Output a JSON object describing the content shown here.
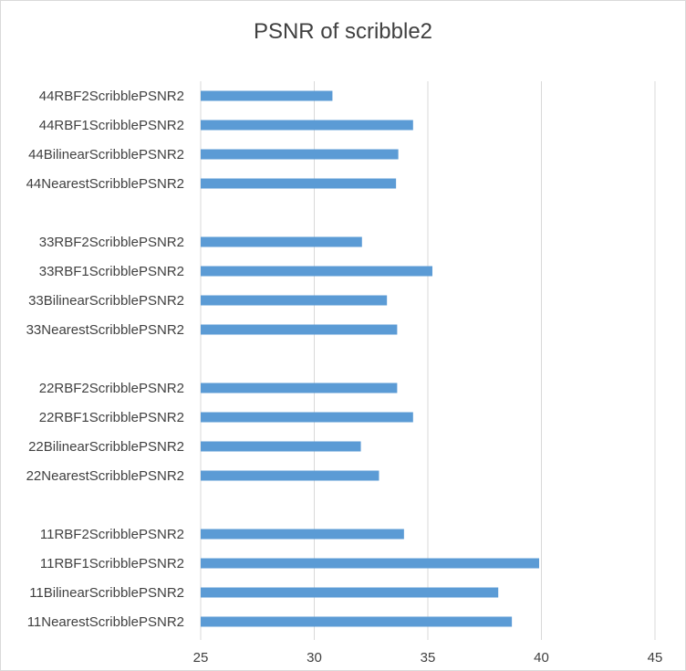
{
  "chart_data": {
    "type": "bar",
    "orientation": "horizontal",
    "title": "PSNR of scribble2",
    "xlabel": "",
    "ylabel": "",
    "xlim": [
      25,
      45
    ],
    "xticks": [
      25,
      30,
      35,
      40,
      45
    ],
    "grid": "vertical",
    "legend": "none",
    "bar_color": "#5b9bd5",
    "grid_color": "#d9d9d9",
    "groups": [
      {
        "items": [
          {
            "label": "44RBF2ScribblePSNR2",
            "value": 30.8
          },
          {
            "label": "44RBF1ScribblePSNR2",
            "value": 34.35
          },
          {
            "label": "44BilinearScribblePSNR2",
            "value": 33.7
          },
          {
            "label": "44NearestScribblePSNR2",
            "value": 33.6
          }
        ]
      },
      {
        "items": [
          {
            "label": "33RBF2ScribblePSNR2",
            "value": 32.1
          },
          {
            "label": "33RBF1ScribblePSNR2",
            "value": 35.2
          },
          {
            "label": "33BilinearScribblePSNR2",
            "value": 33.2
          },
          {
            "label": "33NearestScribblePSNR2",
            "value": 33.65
          }
        ]
      },
      {
        "items": [
          {
            "label": "22RBF2ScribblePSNR2",
            "value": 33.65
          },
          {
            "label": "22RBF1ScribblePSNR2",
            "value": 34.35
          },
          {
            "label": "22BilinearScribblePSNR2",
            "value": 32.05
          },
          {
            "label": "22NearestScribblePSNR2",
            "value": 32.85
          }
        ]
      },
      {
        "items": [
          {
            "label": "11RBF2ScribblePSNR2",
            "value": 33.95
          },
          {
            "label": "11RBF1ScribblePSNR2",
            "value": 39.9
          },
          {
            "label": "11BilinearScribblePSNR2",
            "value": 38.1
          },
          {
            "label": "11NearestScribblePSNR2",
            "value": 38.7
          }
        ]
      }
    ]
  }
}
